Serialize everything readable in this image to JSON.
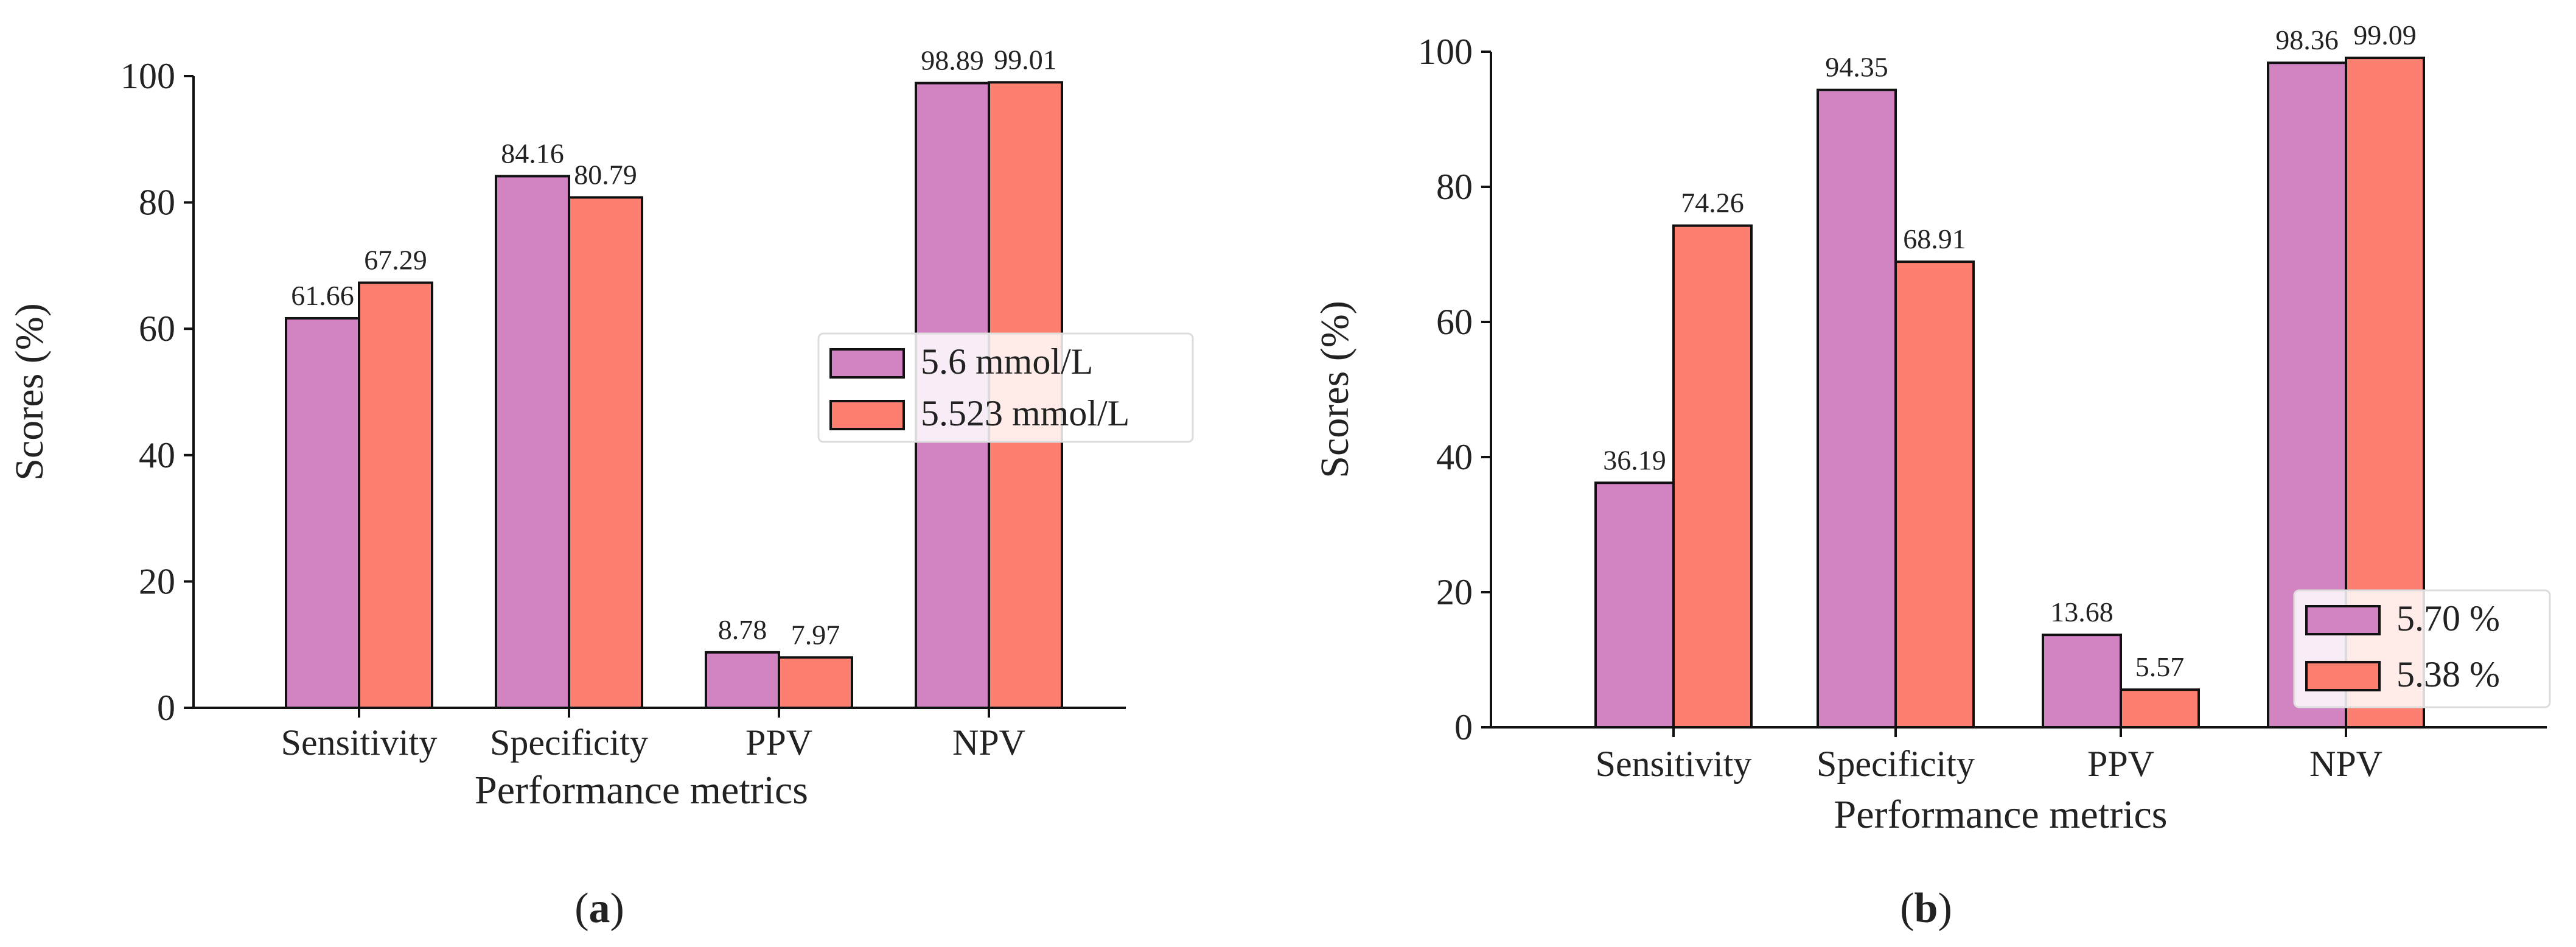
{
  "colors": {
    "series_1": "#d183c2",
    "series_2": "#fd7f6f",
    "edge": "#111111",
    "text": "#222222"
  },
  "chart_data": [
    {
      "type": "bar",
      "panel": "(a)",
      "title": "",
      "xlabel": "Performance metrics",
      "ylabel": "Scores (%)",
      "ylim": [
        0,
        100
      ],
      "yticks": [
        0,
        20,
        40,
        60,
        80,
        100
      ],
      "categories": [
        "Sensitivity",
        "Specificity",
        "PPV",
        "NPV"
      ],
      "series": [
        {
          "name": "5.6 mmol/L",
          "values": [
            61.66,
            84.16,
            8.78,
            98.89
          ]
        },
        {
          "name": "5.523 mmol/L",
          "values": [
            67.29,
            80.79,
            7.97,
            99.01
          ]
        }
      ],
      "value_labels": true,
      "grid": false,
      "legend_position": "center-right"
    },
    {
      "type": "bar",
      "panel": "(b)",
      "title": "",
      "xlabel": "Performance metrics",
      "ylabel": "Scores (%)",
      "ylim": [
        0,
        100
      ],
      "yticks": [
        0,
        20,
        40,
        60,
        80,
        100
      ],
      "categories": [
        "Sensitivity",
        "Specificity",
        "PPV",
        "NPV"
      ],
      "series": [
        {
          "name": "5.70 %",
          "values": [
            36.19,
            94.35,
            13.68,
            98.36
          ]
        },
        {
          "name": "5.38 %",
          "values": [
            74.26,
            68.91,
            5.57,
            99.09
          ]
        }
      ],
      "value_labels": true,
      "grid": false,
      "legend_position": "lower-right"
    }
  ],
  "captions": {
    "a": {
      "open": "(",
      "letter": "a",
      "close": ")"
    },
    "b": {
      "open": "(",
      "letter": "b",
      "close": ")"
    }
  }
}
